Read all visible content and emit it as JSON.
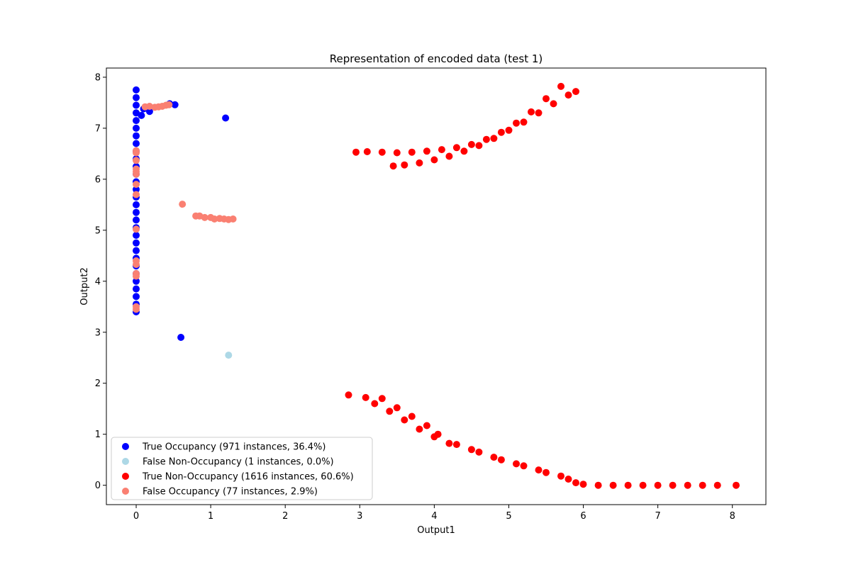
{
  "chart_data": {
    "type": "scatter",
    "title": "Representation of encoded data (test 1)",
    "xlabel": "Output1",
    "ylabel": "Output2",
    "xlim": [
      -0.4,
      8.45
    ],
    "ylim": [
      -0.38,
      8.18
    ],
    "xticks": [
      "0",
      "1",
      "2",
      "3",
      "4",
      "5",
      "6",
      "7",
      "8"
    ],
    "yticks": [
      "0",
      "1",
      "2",
      "3",
      "4",
      "5",
      "6",
      "7",
      "8"
    ],
    "grid": false,
    "legend_position": "lower-left",
    "series": [
      {
        "name": "True Occupancy (971 instances, 36.4%)",
        "color": "#0000ff",
        "points": [
          [
            0,
            3.4
          ],
          [
            0,
            3.55
          ],
          [
            0,
            3.7
          ],
          [
            0,
            3.85
          ],
          [
            0,
            4.0
          ],
          [
            0,
            4.15
          ],
          [
            0,
            4.3
          ],
          [
            0,
            4.45
          ],
          [
            0,
            4.6
          ],
          [
            0,
            4.75
          ],
          [
            0,
            4.9
          ],
          [
            0,
            5.05
          ],
          [
            0,
            5.2
          ],
          [
            0,
            5.35
          ],
          [
            0,
            5.5
          ],
          [
            0,
            5.65
          ],
          [
            0,
            5.8
          ],
          [
            0,
            5.95
          ],
          [
            0,
            6.1
          ],
          [
            0,
            6.25
          ],
          [
            0,
            6.4
          ],
          [
            0,
            6.55
          ],
          [
            0,
            6.7
          ],
          [
            0,
            6.85
          ],
          [
            0,
            7.0
          ],
          [
            0,
            7.15
          ],
          [
            0,
            7.3
          ],
          [
            0,
            7.45
          ],
          [
            0,
            7.6
          ],
          [
            0,
            7.75
          ],
          [
            0.07,
            7.25
          ],
          [
            0.1,
            7.38
          ],
          [
            0.18,
            7.33
          ],
          [
            0.45,
            7.48
          ],
          [
            0.52,
            7.46
          ],
          [
            1.2,
            7.2
          ],
          [
            0.6,
            2.9
          ]
        ]
      },
      {
        "name": "False Non-Occupancy (1 instances, 0.0%)",
        "color": "#add8e6",
        "points": [
          [
            1.24,
            2.55
          ]
        ]
      },
      {
        "name": "True Non-Occupancy (1616 instances, 60.6%)",
        "color": "#ff0000",
        "points": [
          [
            2.95,
            6.53
          ],
          [
            3.1,
            6.54
          ],
          [
            3.3,
            6.53
          ],
          [
            3.5,
            6.52
          ],
          [
            3.7,
            6.53
          ],
          [
            3.9,
            6.55
          ],
          [
            4.1,
            6.58
          ],
          [
            4.3,
            6.62
          ],
          [
            4.5,
            6.68
          ],
          [
            4.7,
            6.78
          ],
          [
            4.9,
            6.92
          ],
          [
            5.1,
            7.1
          ],
          [
            5.3,
            7.32
          ],
          [
            5.5,
            7.58
          ],
          [
            5.7,
            7.82
          ],
          [
            3.45,
            6.26
          ],
          [
            3.6,
            6.28
          ],
          [
            3.8,
            6.32
          ],
          [
            4.0,
            6.38
          ],
          [
            4.2,
            6.45
          ],
          [
            4.4,
            6.55
          ],
          [
            4.6,
            6.66
          ],
          [
            4.8,
            6.8
          ],
          [
            5.0,
            6.96
          ],
          [
            5.2,
            7.12
          ],
          [
            5.4,
            7.3
          ],
          [
            5.6,
            7.48
          ],
          [
            5.8,
            7.65
          ],
          [
            5.9,
            7.72
          ],
          [
            2.85,
            1.77
          ],
          [
            3.08,
            1.72
          ],
          [
            3.2,
            1.6
          ],
          [
            3.4,
            1.45
          ],
          [
            3.6,
            1.28
          ],
          [
            3.8,
            1.1
          ],
          [
            4.0,
            0.95
          ],
          [
            4.2,
            0.82
          ],
          [
            4.5,
            0.7
          ],
          [
            4.8,
            0.55
          ],
          [
            5.1,
            0.42
          ],
          [
            5.4,
            0.3
          ],
          [
            5.7,
            0.18
          ],
          [
            5.9,
            0.05
          ],
          [
            3.3,
            1.7
          ],
          [
            3.5,
            1.52
          ],
          [
            3.7,
            1.35
          ],
          [
            3.9,
            1.17
          ],
          [
            4.05,
            1.0
          ],
          [
            4.3,
            0.8
          ],
          [
            4.6,
            0.65
          ],
          [
            4.9,
            0.5
          ],
          [
            5.2,
            0.38
          ],
          [
            5.5,
            0.25
          ],
          [
            5.8,
            0.12
          ],
          [
            6.0,
            0.02
          ],
          [
            6.2,
            0.0
          ],
          [
            6.4,
            0.0
          ],
          [
            6.6,
            0.0
          ],
          [
            6.8,
            0.0
          ],
          [
            7.0,
            0.0
          ],
          [
            7.2,
            0.0
          ],
          [
            7.4,
            0.0
          ],
          [
            7.6,
            0.0
          ],
          [
            7.8,
            0.0
          ],
          [
            8.05,
            0.0
          ]
        ]
      },
      {
        "name": "False Occupancy (77 instances, 2.9%)",
        "color": "#fa8072",
        "points": [
          [
            0,
            3.45
          ],
          [
            0,
            3.5
          ],
          [
            0,
            4.1
          ],
          [
            0,
            4.15
          ],
          [
            0,
            4.33
          ],
          [
            0,
            4.4
          ],
          [
            0,
            5.02
          ],
          [
            0,
            5.7
          ],
          [
            0,
            5.9
          ],
          [
            0,
            6.1
          ],
          [
            0,
            6.15
          ],
          [
            0,
            6.2
          ],
          [
            0,
            6.37
          ],
          [
            0,
            6.52
          ],
          [
            0,
            6.56
          ],
          [
            0.12,
            7.42
          ],
          [
            0.18,
            7.43
          ],
          [
            0.25,
            7.41
          ],
          [
            0.3,
            7.42
          ],
          [
            0.35,
            7.43
          ],
          [
            0.4,
            7.45
          ],
          [
            0.44,
            7.46
          ],
          [
            0.62,
            5.51
          ],
          [
            0.8,
            5.28
          ],
          [
            0.85,
            5.28
          ],
          [
            0.92,
            5.25
          ],
          [
            1.0,
            5.25
          ],
          [
            1.05,
            5.22
          ],
          [
            1.12,
            5.23
          ],
          [
            1.18,
            5.22
          ],
          [
            1.24,
            5.21
          ],
          [
            1.3,
            5.22
          ]
        ]
      }
    ]
  }
}
